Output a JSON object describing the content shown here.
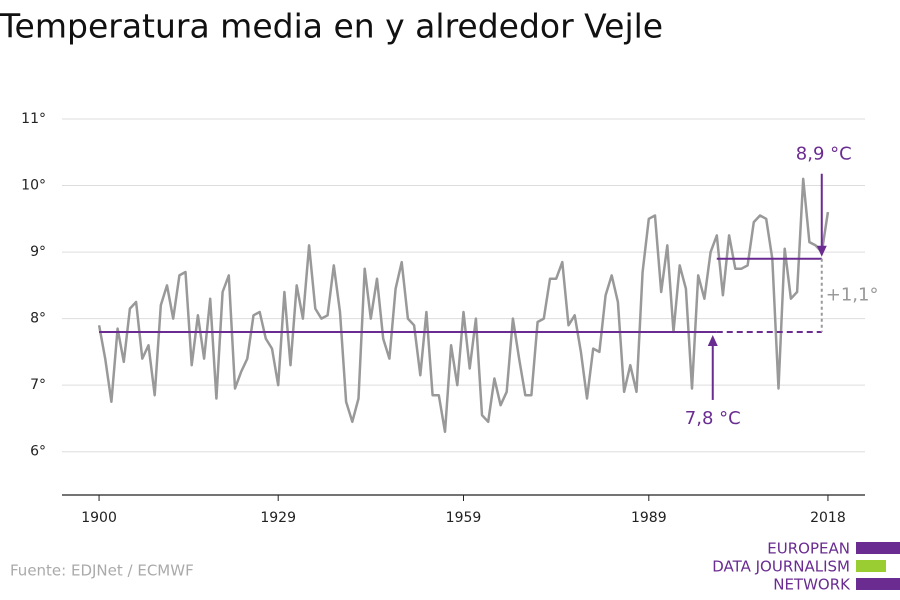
{
  "chart_data": {
    "type": "line",
    "title": "Temperatura media en y alrededor Vejle",
    "source": "Fuente: EDJNet / ECMWF",
    "logo": [
      "EUROPEAN",
      "DATA JOURNALISM",
      "NETWORK"
    ],
    "x": [
      1900,
      1901,
      1902,
      1903,
      1904,
      1905,
      1906,
      1907,
      1908,
      1909,
      1910,
      1911,
      1912,
      1913,
      1914,
      1915,
      1916,
      1917,
      1918,
      1919,
      1920,
      1921,
      1922,
      1923,
      1924,
      1925,
      1926,
      1927,
      1928,
      1929,
      1930,
      1931,
      1932,
      1933,
      1934,
      1935,
      1936,
      1937,
      1938,
      1939,
      1940,
      1941,
      1942,
      1943,
      1944,
      1945,
      1946,
      1947,
      1948,
      1949,
      1950,
      1951,
      1952,
      1953,
      1954,
      1955,
      1956,
      1957,
      1958,
      1959,
      1960,
      1961,
      1962,
      1963,
      1964,
      1965,
      1966,
      1967,
      1968,
      1969,
      1970,
      1971,
      1972,
      1973,
      1974,
      1975,
      1976,
      1977,
      1978,
      1979,
      1980,
      1981,
      1982,
      1983,
      1984,
      1985,
      1986,
      1987,
      1988,
      1989,
      1990,
      1991,
      1992,
      1993,
      1994,
      1995,
      1996,
      1997,
      1998,
      1999,
      2000,
      2001,
      2002,
      2003,
      2004,
      2005,
      2006,
      2007,
      2008,
      2009,
      2010,
      2011,
      2012,
      2013,
      2014,
      2015,
      2016,
      2017,
      2018
    ],
    "series": [
      {
        "color": "#999999",
        "values": [
          7.9,
          7.4,
          6.75,
          7.85,
          7.35,
          8.15,
          8.25,
          7.4,
          7.6,
          6.85,
          8.2,
          8.5,
          8.0,
          8.65,
          8.7,
          7.3,
          8.05,
          7.4,
          8.3,
          6.8,
          8.4,
          8.65,
          6.95,
          7.2,
          7.4,
          8.05,
          8.1,
          7.7,
          7.55,
          7.0,
          8.4,
          7.3,
          8.5,
          8.0,
          9.1,
          8.15,
          8.0,
          8.05,
          8.8,
          8.1,
          6.75,
          6.45,
          6.8,
          8.75,
          8.0,
          8.6,
          7.7,
          7.4,
          8.45,
          8.85,
          8.0,
          7.9,
          7.15,
          8.1,
          6.85,
          6.85,
          6.3,
          7.6,
          7.0,
          8.1,
          7.25,
          8.0,
          6.55,
          6.45,
          7.1,
          6.7,
          6.9,
          8.0,
          7.4,
          6.85,
          6.85,
          7.95,
          8.0,
          8.6,
          8.6,
          8.85,
          7.9,
          8.05,
          7.5,
          6.8,
          7.55,
          7.5,
          8.35,
          8.65,
          8.25,
          6.9,
          7.3,
          6.9,
          8.7,
          9.5,
          9.55,
          8.4,
          9.1,
          7.8,
          8.8,
          8.45,
          6.95,
          8.65,
          8.3,
          9.0,
          9.25,
          8.35,
          9.25,
          8.75,
          8.75,
          8.8,
          9.45,
          9.55,
          9.5,
          8.9,
          6.95,
          9.05,
          8.3,
          8.4,
          10.1,
          9.15,
          9.1,
          9.0,
          9.6
        ]
      }
    ],
    "reference_lines": [
      {
        "value": 7.8,
        "label": "7,8 °C",
        "from": 1900,
        "to": 2000,
        "color": "#6a2c91"
      },
      {
        "value": 8.9,
        "label": "8,9 °C",
        "from": 2000,
        "to": 2017,
        "color": "#6a2c91"
      }
    ],
    "difference_label": "+1,1°",
    "xlim": [
      1894,
      2024
    ],
    "xticks": [
      1900,
      1929,
      1959,
      1989,
      2018
    ],
    "ylim": [
      5.35,
      11.3
    ],
    "yticks": [
      {
        "value": 6,
        "label": "6°"
      },
      {
        "value": 7,
        "label": "7°"
      },
      {
        "value": 8,
        "label": "8°"
      },
      {
        "value": 9,
        "label": "9°"
      },
      {
        "value": 10,
        "label": "10°"
      },
      {
        "value": 11,
        "label": "11°"
      }
    ],
    "grid": true
  }
}
